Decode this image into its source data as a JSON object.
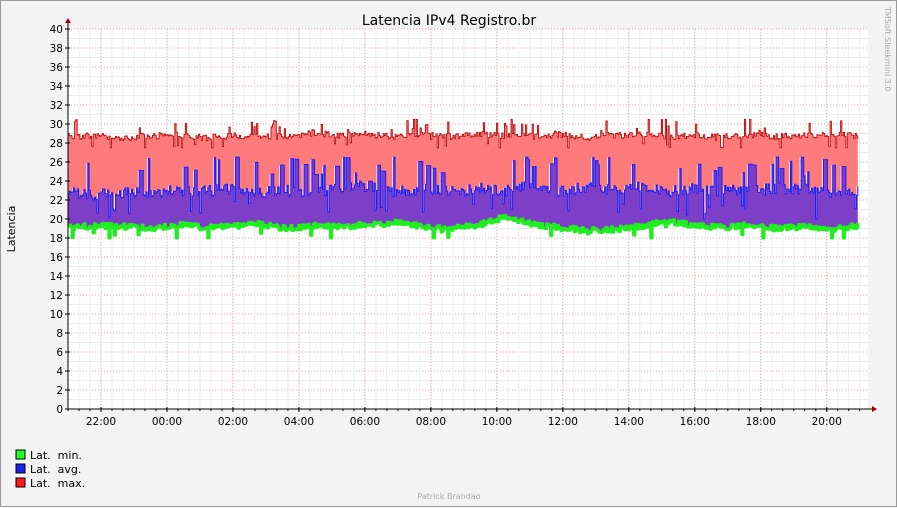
{
  "chart_data": {
    "type": "area",
    "title": "Latencia IPv4 Registro.br",
    "ylabel": "Latencia",
    "xlabel": "",
    "ylim": [
      0,
      40
    ],
    "yticks": [
      0,
      2,
      4,
      6,
      8,
      10,
      12,
      14,
      16,
      18,
      20,
      22,
      24,
      26,
      28,
      30,
      32,
      34,
      36,
      38,
      40
    ],
    "xticks": [
      "22:00",
      "00:00",
      "02:00",
      "04:00",
      "06:00",
      "08:00",
      "10:00",
      "12:00",
      "14:00",
      "16:00",
      "18:00",
      "20:00"
    ],
    "xticks_hours": [
      1,
      3,
      5,
      7,
      9,
      11,
      13,
      15,
      17,
      19,
      21,
      23
    ],
    "x_range_hours": [
      0,
      24.25
    ],
    "grid": true,
    "legend_placement": "bottom-left",
    "series": [
      {
        "name": "Lat.  min.",
        "color": "#00ff00",
        "typical_range": [
          18.0,
          20.5
        ],
        "anchors": [
          19.1,
          19.3,
          19.2,
          19.0,
          19.4,
          19.1,
          19.2,
          19.5,
          19.0,
          19.3,
          19.2,
          19.4,
          19.6,
          19.2,
          19.0,
          19.3,
          20.2,
          19.5,
          19.1,
          18.8,
          18.9,
          19.2,
          19.8,
          19.3,
          19.1,
          19.4,
          19.0,
          19.2,
          18.9,
          19.3
        ]
      },
      {
        "name": "Lat.  avg.",
        "color": "#0000ff",
        "typical_range": [
          19.5,
          26.5
        ],
        "anchors": [
          23.0,
          22.5,
          22.8,
          22.6,
          23.1,
          22.9,
          23.2,
          22.8,
          23.0,
          22.7,
          23.3,
          23.5,
          22.9,
          23.1,
          22.8,
          23.2,
          23.0,
          23.4,
          22.9,
          23.3,
          23.1,
          23.5,
          22.8,
          23.2,
          23.0,
          22.9,
          23.3,
          23.1,
          22.8,
          23.0
        ]
      },
      {
        "name": "Lat.  max.",
        "color": "#ff0000",
        "typical_range": [
          27.5,
          30.5
        ],
        "anchors": [
          28.7,
          28.8,
          28.6,
          28.7,
          28.9,
          28.5,
          28.8,
          28.6,
          28.7,
          29.1,
          28.8,
          28.9,
          28.6,
          28.8,
          28.7,
          28.9,
          28.8,
          28.7,
          28.9,
          28.6,
          28.8,
          28.9,
          28.7,
          28.8,
          28.6,
          28.9,
          28.7,
          28.8,
          28.9,
          28.7
        ]
      }
    ]
  },
  "side_text": "TMSoft Sleekmini 3.0",
  "footer_text": "Patrick Brandao",
  "legend": [
    {
      "label": "Lat.  min.",
      "color": "#22ff22"
    },
    {
      "label": "Lat.  avg.",
      "color": "#1f1ff0"
    },
    {
      "label": "Lat.  max.",
      "color": "#ff1a1a"
    }
  ]
}
